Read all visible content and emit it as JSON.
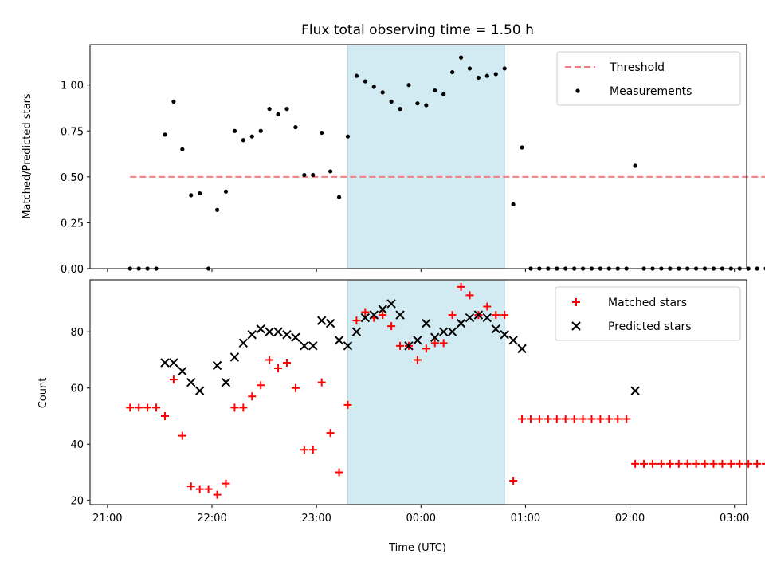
{
  "chart_data": [
    {
      "type": "scatter",
      "title": "Flux total observing time = 1.50 h",
      "xlabel": "",
      "ylabel": "Matched/Predicted stars",
      "ylim": [
        0,
        1.22
      ],
      "yticks": [
        "0.00",
        "0.25",
        "0.50",
        "0.75",
        "1.00"
      ],
      "highlight_span": {
        "start": "23:18",
        "end": "00:48",
        "color": "#add8e6"
      },
      "legend_position": "top-right",
      "series": [
        {
          "name": "Threshold",
          "kind": "dashed-line",
          "color": "#f08080",
          "x": [
            "21:13",
            "03:18"
          ],
          "y": [
            0.5,
            0.5
          ]
        },
        {
          "name": "Measurements",
          "kind": "points",
          "color": "#000000",
          "x": [
            "21:13",
            "21:18",
            "21:23",
            "21:28",
            "21:33",
            "21:38",
            "21:43",
            "21:48",
            "21:53",
            "21:58",
            "22:03",
            "22:08",
            "22:13",
            "22:18",
            "22:23",
            "22:28",
            "22:33",
            "22:38",
            "22:43",
            "22:48",
            "22:53",
            "22:58",
            "23:03",
            "23:08",
            "23:13",
            "23:18",
            "23:23",
            "23:28",
            "23:33",
            "23:38",
            "23:43",
            "23:48",
            "23:53",
            "23:58",
            "00:03",
            "00:08",
            "00:13",
            "00:18",
            "00:23",
            "00:28",
            "00:33",
            "00:38",
            "00:43",
            "00:48",
            "00:53",
            "00:58",
            "01:03",
            "01:08",
            "01:13",
            "01:18",
            "01:23",
            "01:28",
            "01:33",
            "01:38",
            "01:43",
            "01:48",
            "01:53",
            "01:58",
            "02:03",
            "02:08",
            "02:13",
            "02:18",
            "02:23",
            "02:28",
            "02:33",
            "02:38",
            "02:43",
            "02:48",
            "02:53",
            "02:58",
            "03:03",
            "03:08",
            "03:13",
            "03:18"
          ],
          "y": [
            0.0,
            0.0,
            0.0,
            0.0,
            0.73,
            0.91,
            0.65,
            0.4,
            0.41,
            0.0,
            0.32,
            0.42,
            0.75,
            0.7,
            0.72,
            0.75,
            0.87,
            0.84,
            0.87,
            0.77,
            0.51,
            0.51,
            0.74,
            0.53,
            0.39,
            0.72,
            1.05,
            1.02,
            0.99,
            0.96,
            0.91,
            0.87,
            1.0,
            0.9,
            0.89,
            0.97,
            0.95,
            1.07,
            1.15,
            1.09,
            1.04,
            1.05,
            1.06,
            1.09,
            0.35,
            0.66,
            0.0,
            0.0,
            0.0,
            0.0,
            0.0,
            0.0,
            0.0,
            0.0,
            0.0,
            0.0,
            0.0,
            0.0,
            0.56,
            0.0,
            0.0,
            0.0,
            0.0,
            0.0,
            0.0,
            0.0,
            0.0,
            0.0,
            0.0,
            0.0,
            0.0,
            0.0,
            0.0,
            0.0
          ]
        }
      ]
    },
    {
      "type": "scatter",
      "title": "",
      "xlabel": "Time (UTC)",
      "ylabel": "Count",
      "ylim": [
        18.5,
        98.5
      ],
      "yticks": [
        "20",
        "40",
        "60",
        "80"
      ],
      "xticks": [
        "21:00",
        "22:00",
        "23:00",
        "00:00",
        "01:00",
        "02:00",
        "03:00"
      ],
      "highlight_span": {
        "start": "23:18",
        "end": "00:48",
        "color": "#add8e6"
      },
      "legend_position": "top-right",
      "series": [
        {
          "name": "Matched stars",
          "kind": "plus",
          "color": "#ff0000",
          "x": [
            "21:13",
            "21:18",
            "21:23",
            "21:28",
            "21:33",
            "21:38",
            "21:43",
            "21:48",
            "21:53",
            "21:58",
            "22:03",
            "22:08",
            "22:13",
            "22:18",
            "22:23",
            "22:28",
            "22:33",
            "22:38",
            "22:43",
            "22:48",
            "22:53",
            "22:58",
            "23:03",
            "23:08",
            "23:13",
            "23:18",
            "23:23",
            "23:28",
            "23:33",
            "23:38",
            "23:43",
            "23:48",
            "23:53",
            "23:58",
            "00:03",
            "00:08",
            "00:13",
            "00:18",
            "00:23",
            "00:28",
            "00:33",
            "00:38",
            "00:43",
            "00:48",
            "00:53",
            "00:58",
            "01:03",
            "01:08",
            "01:13",
            "01:18",
            "01:23",
            "01:28",
            "01:33",
            "01:38",
            "01:43",
            "01:48",
            "01:53",
            "01:58",
            "02:03",
            "02:08",
            "02:13",
            "02:18",
            "02:23",
            "02:28",
            "02:33",
            "02:38",
            "02:43",
            "02:48",
            "02:53",
            "02:58",
            "03:03",
            "03:08",
            "03:13",
            "03:18"
          ],
          "y": [
            53,
            53,
            53,
            53,
            50,
            63,
            43,
            25,
            24,
            24,
            22,
            26,
            53,
            53,
            57,
            61,
            70,
            67,
            69,
            60,
            38,
            38,
            62,
            44,
            30,
            54,
            84,
            87,
            85,
            86,
            82,
            75,
            75,
            70,
            74,
            76,
            76,
            86,
            96,
            93,
            86,
            89,
            86,
            86,
            27,
            49,
            49,
            49,
            49,
            49,
            49,
            49,
            49,
            49,
            49,
            49,
            49,
            49,
            33,
            33,
            33,
            33,
            33,
            33,
            33,
            33,
            33,
            33,
            33,
            33,
            33,
            33,
            33,
            33
          ]
        },
        {
          "name": "Predicted stars",
          "kind": "cross",
          "color": "#000000",
          "x": [
            "21:33",
            "21:38",
            "21:43",
            "21:48",
            "21:53",
            "22:03",
            "22:08",
            "22:13",
            "22:18",
            "22:23",
            "22:28",
            "22:33",
            "22:38",
            "22:43",
            "22:48",
            "22:53",
            "22:58",
            "23:03",
            "23:08",
            "23:13",
            "23:18",
            "23:23",
            "23:28",
            "23:33",
            "23:38",
            "23:43",
            "23:48",
            "23:53",
            "23:58",
            "00:03",
            "00:08",
            "00:13",
            "00:18",
            "00:23",
            "00:28",
            "00:33",
            "00:38",
            "00:43",
            "00:48",
            "00:53",
            "00:58",
            "02:03"
          ],
          "y": [
            69,
            69,
            66,
            62,
            59,
            68,
            62,
            71,
            76,
            79,
            81,
            80,
            80,
            79,
            78,
            75,
            75,
            84,
            83,
            77,
            75,
            80,
            85,
            86,
            88,
            90,
            86,
            75,
            77,
            83,
            78,
            80,
            80,
            83,
            85,
            86,
            85,
            81,
            79,
            77,
            74,
            59
          ]
        }
      ]
    }
  ]
}
